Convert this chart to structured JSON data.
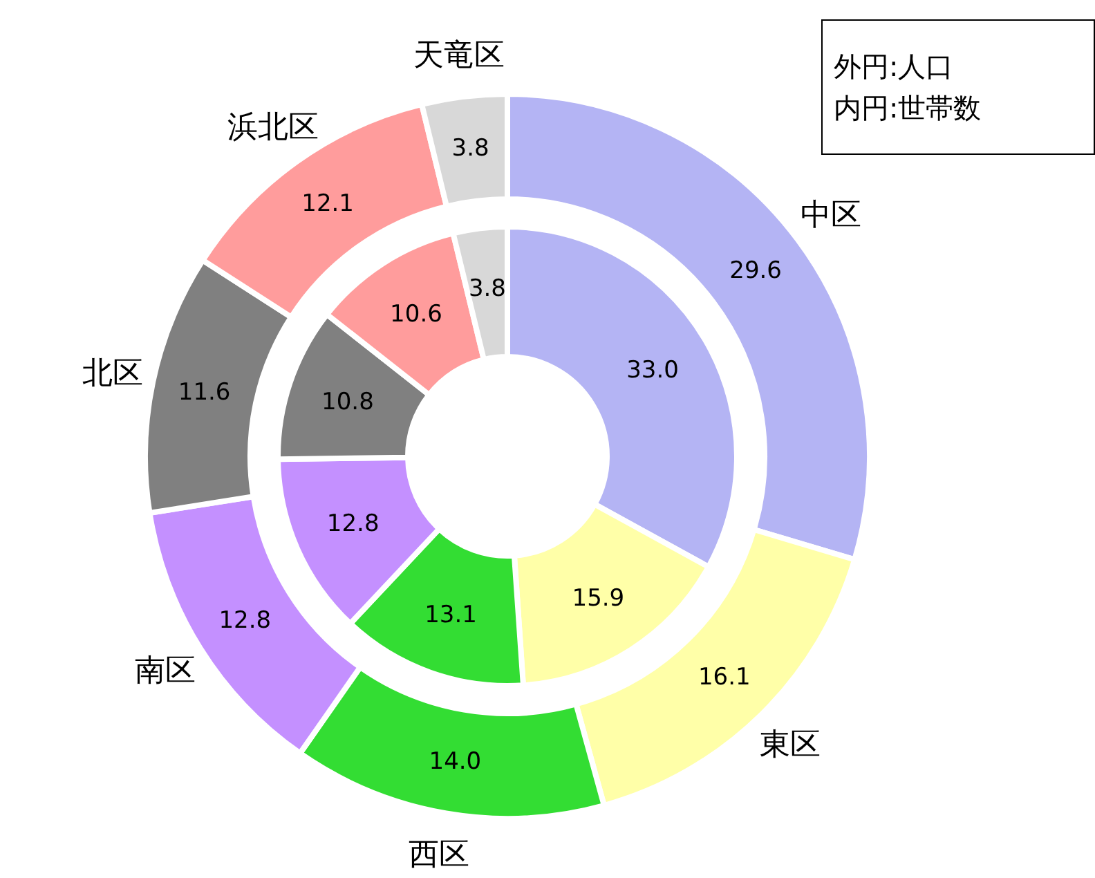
{
  "chart_data": {
    "type": "donut",
    "categories": [
      "中区",
      "東区",
      "西区",
      "南区",
      "北区",
      "浜北区",
      "天竜区"
    ],
    "colors": [
      "#b4b4f4",
      "#ffffa8",
      "#33dd33",
      "#c490ff",
      "#808080",
      "#ff9c9c",
      "#d8d8d8"
    ],
    "series": [
      {
        "values": [
          29.6,
          16.1,
          14.0,
          12.8,
          11.6,
          12.1,
          3.8
        ],
        "value_labels": [
          "29.6",
          "16.1",
          "14.0",
          "12.8",
          "11.6",
          "12.1",
          "3.8"
        ]
      },
      {
        "values": [
          33.0,
          15.9,
          13.1,
          12.8,
          10.8,
          10.6,
          3.8
        ],
        "value_labels": [
          "33.0",
          "15.9",
          "13.1",
          "12.8",
          "10.8",
          "10.6",
          "3.8"
        ]
      }
    ],
    "annotations": [
      "外円:人口",
      "内円:世帯数"
    ]
  }
}
